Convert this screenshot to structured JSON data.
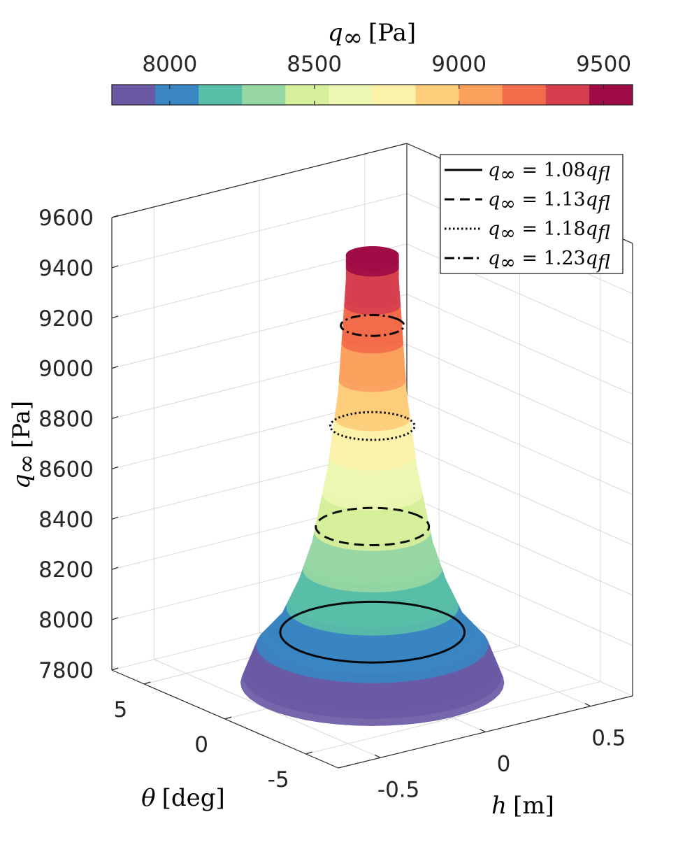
{
  "chart_data": {
    "type": "surface3d",
    "colorbar": {
      "label_sym": "q",
      "label_sub": "∞",
      "label_unit": "[Pa]",
      "ticks": [
        "8000",
        "8500",
        "9000",
        "9500"
      ],
      "tick_values": [
        8000,
        8500,
        9000,
        9500
      ],
      "range": [
        7800,
        9600
      ],
      "colors": [
        "#6a5aa6",
        "#3a86c2",
        "#59bea8",
        "#96d7a3",
        "#d6ef9b",
        "#edf6b2",
        "#fbf1a9",
        "#fdcd7b",
        "#fb9f5d",
        "#f26b4a",
        "#d6404e",
        "#9f0c45"
      ]
    },
    "zaxis": {
      "label_sym": "q",
      "label_sub": "∞",
      "label_unit": "[Pa]",
      "ticks": [
        "7800",
        "8000",
        "8200",
        "8400",
        "8600",
        "8800",
        "9000",
        "9200",
        "9400",
        "9600"
      ],
      "tick_values": [
        7800,
        8000,
        8200,
        8400,
        8600,
        8800,
        9000,
        9200,
        9400,
        9600
      ],
      "range": [
        7800,
        9600
      ]
    },
    "yaxis": {
      "label_sym": "θ",
      "label_unit": "[deg]",
      "ticks": [
        "5",
        "0",
        "-5"
      ],
      "tick_values": [
        5,
        0,
        -5
      ],
      "range": [
        -7,
        7
      ]
    },
    "xaxis": {
      "label_sym": "h",
      "label_unit": "[m]",
      "ticks": [
        "-0.5",
        "0",
        "0.5"
      ],
      "tick_values": [
        -0.5,
        0,
        0.5
      ],
      "range": [
        -0.7,
        0.7
      ]
    },
    "grid": true,
    "legend_position": "top-right",
    "surface_profile": {
      "q": [
        7800,
        7950,
        8050,
        8200,
        8350,
        8500,
        8650,
        8800,
        8950,
        9100,
        9250,
        9400,
        9500
      ],
      "h_radius": [
        0.5,
        0.44,
        0.35,
        0.28,
        0.23,
        0.2,
        0.17,
        0.15,
        0.13,
        0.12,
        0.11,
        0.1,
        0.1
      ]
    },
    "contours": [
      {
        "legend_prefix": "q",
        "legend_sub": "∞",
        "legend_mid": " = 1.08",
        "legend_q": "q",
        "legend_qsub": "fl",
        "style": "solid",
        "q_level": 8000,
        "h_radius": 0.35
      },
      {
        "legend_prefix": "q",
        "legend_sub": "∞",
        "legend_mid": " = 1.13",
        "legend_q": "q",
        "legend_qsub": "fl",
        "style": "dashed",
        "q_level": 8420,
        "h_radius": 0.215
      },
      {
        "legend_prefix": "q",
        "legend_sub": "∞",
        "legend_mid": " = 1.18",
        "legend_q": "q",
        "legend_qsub": "fl",
        "style": "dotted",
        "q_level": 8820,
        "h_radius": 0.16
      },
      {
        "legend_prefix": "q",
        "legend_sub": "∞",
        "legend_mid": " = 1.23",
        "legend_q": "q",
        "legend_qsub": "fl",
        "style": "dashdot",
        "q_level": 9220,
        "h_radius": 0.12
      }
    ]
  }
}
